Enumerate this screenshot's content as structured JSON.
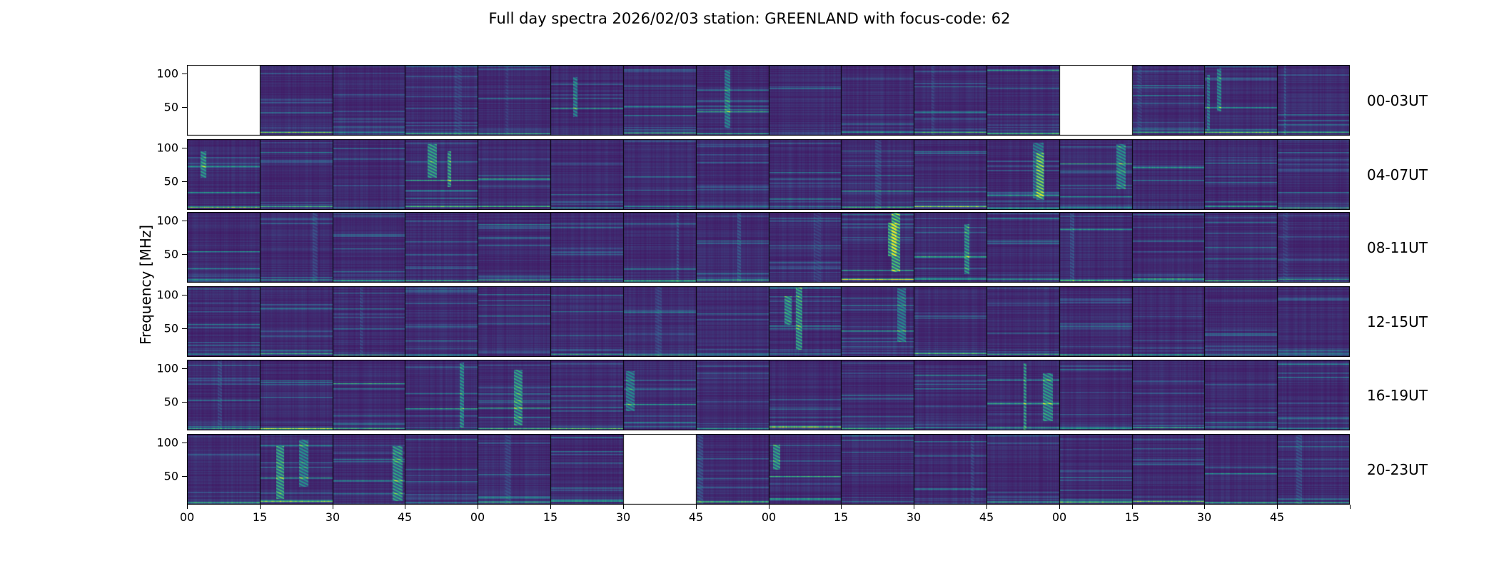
{
  "title": "Full day spectra 2026/02/03 station: GREENLAND with focus-code: 62",
  "ylabel": "Frequency [MHz]",
  "y_ticks": [
    "100",
    "50"
  ],
  "x_ticks": [
    "00",
    "15",
    "30",
    "45",
    "00",
    "15",
    "30",
    "45",
    "00",
    "15",
    "30",
    "45",
    "00",
    "15",
    "30",
    "45"
  ],
  "rows": [
    {
      "label": "00-03UT",
      "missing": [
        0,
        12
      ],
      "bright": [
        5,
        7,
        14
      ]
    },
    {
      "label": "04-07UT",
      "missing": [],
      "bright": [
        0,
        3,
        11,
        12
      ]
    },
    {
      "label": "08-11UT",
      "missing": [],
      "bright": [
        9,
        10
      ]
    },
    {
      "label": "12-15UT",
      "missing": [],
      "bright": [
        8,
        9
      ]
    },
    {
      "label": "16-19UT",
      "missing": [],
      "bright": [
        3,
        4,
        6,
        11
      ]
    },
    {
      "label": "20-23UT",
      "missing": [
        6
      ],
      "bright": [
        1,
        2,
        8
      ]
    }
  ],
  "chart_data": {
    "type": "heatmap",
    "title": "Full day spectra 2026/02/03 station: GREENLAND with focus-code: 62",
    "ylabel": "Frequency [MHz]",
    "y_tick_values": [
      50,
      100
    ],
    "y_range_mhz_approx": [
      15,
      110
    ],
    "colormap": "viridis",
    "row_labels": [
      "00-03UT",
      "04-07UT",
      "08-11UT",
      "12-15UT",
      "16-19UT",
      "20-23UT"
    ],
    "segments_per_row": 16,
    "segment_duration_minutes": 15,
    "x_tick_labels": [
      "00",
      "15",
      "30",
      "45",
      "00",
      "15",
      "30",
      "45",
      "00",
      "15",
      "30",
      "45",
      "00",
      "15",
      "30",
      "45"
    ],
    "missing_segments": [
      {
        "row": "00-03UT",
        "segment_indices": [
          0,
          12
        ]
      },
      {
        "row": "20-23UT",
        "segment_indices": [
          6
        ]
      }
    ],
    "legend": "none",
    "grid": false
  }
}
